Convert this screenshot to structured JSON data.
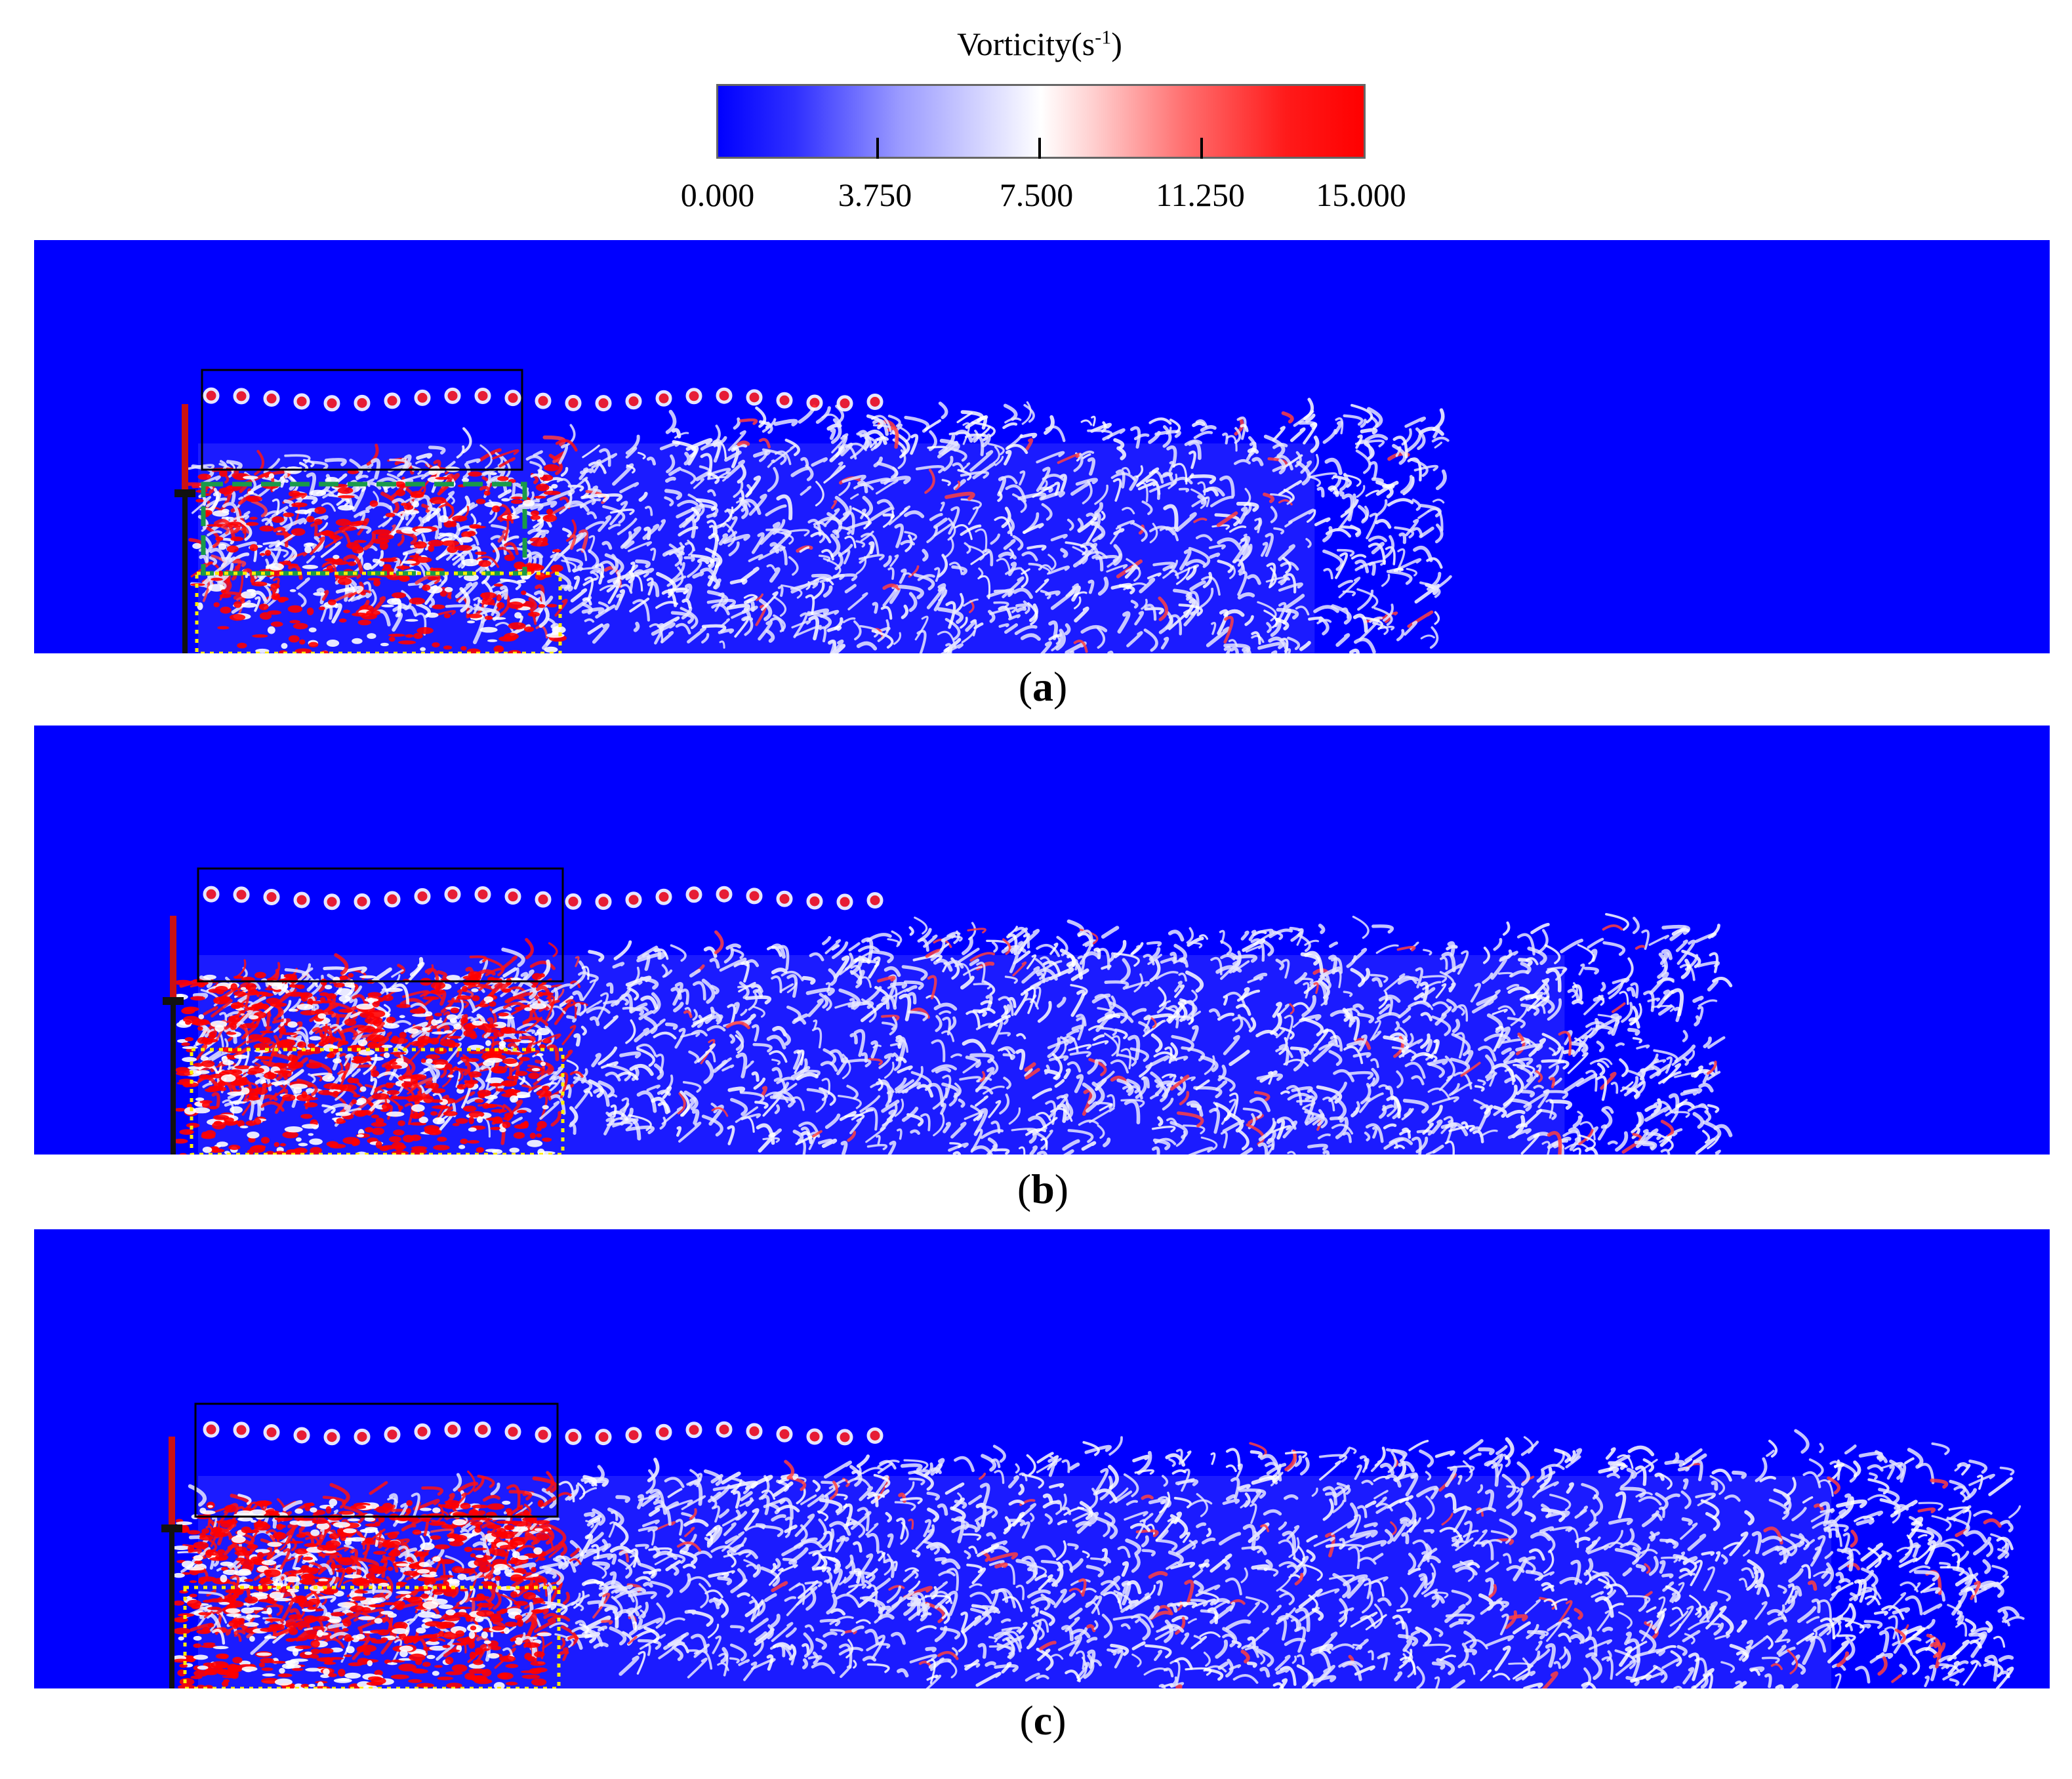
{
  "colorbar": {
    "title_main": "Vorticity(s",
    "title_sup": "-1",
    "title_end": ")",
    "ticks": [
      "0.000",
      "3.750",
      "7.500",
      "11.250",
      "15.000"
    ],
    "min": 0,
    "max": 15,
    "colors": {
      "low": "#0000ff",
      "mid": "#ffffff",
      "high": "#ff0000"
    }
  },
  "panels": [
    {
      "label": "a",
      "wake_extent_fraction": 0.67,
      "near_wake_intensity": 0.35,
      "has_green_box": true
    },
    {
      "label": "b",
      "wake_extent_fraction": 0.82,
      "near_wake_intensity": 0.7,
      "has_green_box": false
    },
    {
      "label": "c",
      "wake_extent_fraction": 0.98,
      "near_wake_intensity": 0.9,
      "has_green_box": false
    }
  ],
  "colors": {
    "background": "#0000ff",
    "black_box": "#000000",
    "green_box": "#1a9a4a",
    "yellow_box": "#ffee00"
  }
}
